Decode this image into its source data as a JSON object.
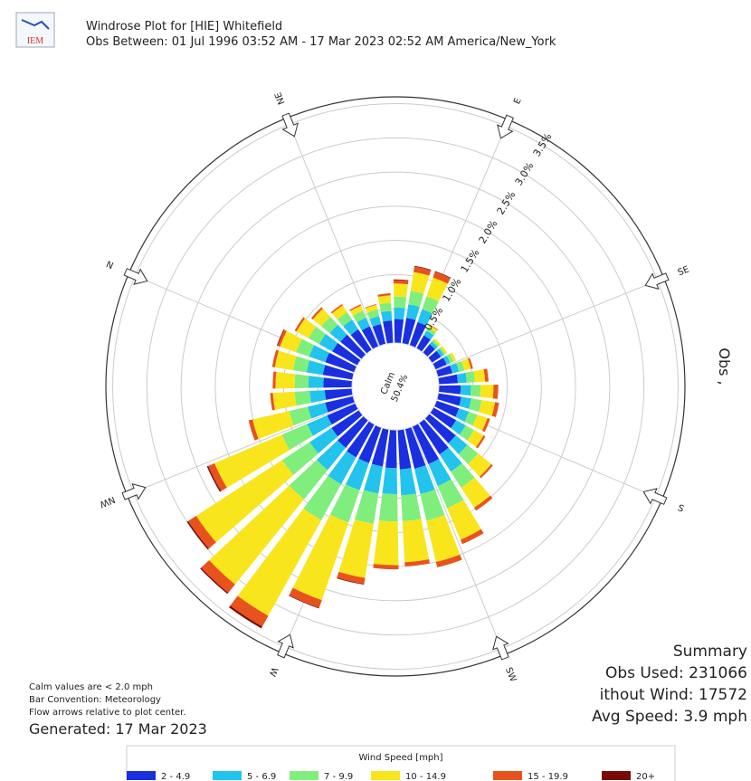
{
  "header": {
    "title": "Windrose Plot for [HIE] Whitefield",
    "subtitle": "Obs Between: 01 Jul 1996 03:52 AM - 17 Mar 2023 02:52 AM America/New_York",
    "logo": "IEM"
  },
  "chart_data": {
    "type": "windrose",
    "direction_labels": [
      "N",
      "NE",
      "E",
      "SE",
      "S",
      "SW",
      "W",
      "NW"
    ],
    "side_label": "Obs ,",
    "calm_label": "Calm",
    "calm_value": 50.4,
    "calm_value_label": "50.4%",
    "ylim": [
      0,
      3.6
    ],
    "yticks": [
      {
        "value": 0.5,
        "label": "0.5%"
      },
      {
        "value": 1.0,
        "label": "1.0%"
      },
      {
        "value": 1.5,
        "label": "1.5%"
      },
      {
        "value": 2.0,
        "label": "2.0%"
      },
      {
        "value": 2.5,
        "label": "2.5%"
      },
      {
        "value": 3.0,
        "label": "3.0%"
      },
      {
        "value": 3.5,
        "label": "3.5%"
      }
    ],
    "grid": true,
    "legend_title": "Wind Speed [mph]",
    "series": [
      {
        "name": "2 - 4.9",
        "color": "#1a2fe0",
        "values": [
          0.45,
          0.42,
          0.4,
          0.36,
          0.32,
          0.3,
          0.33,
          0.35,
          0.38,
          0.36,
          0.22,
          0.16,
          0.16,
          0.18,
          0.22,
          0.28,
          0.32,
          0.34,
          0.35,
          0.38,
          0.5,
          0.55,
          0.6,
          0.6,
          0.58,
          0.56,
          0.55,
          0.55,
          0.55,
          0.52,
          0.48,
          0.45,
          0.42,
          0.4,
          0.42,
          0.44
        ]
      },
      {
        "name": "5 - 6.9",
        "color": "#22c3ec",
        "values": [
          0.25,
          0.22,
          0.2,
          0.17,
          0.14,
          0.12,
          0.14,
          0.17,
          0.2,
          0.2,
          0.08,
          0.05,
          0.05,
          0.06,
          0.1,
          0.13,
          0.15,
          0.15,
          0.15,
          0.16,
          0.22,
          0.3,
          0.35,
          0.38,
          0.38,
          0.38,
          0.4,
          0.42,
          0.45,
          0.42,
          0.38,
          0.32,
          0.26,
          0.22,
          0.22,
          0.24
        ]
      },
      {
        "name": "7 - 9.9",
        "color": "#80ee7c",
        "values": [
          0.2,
          0.18,
          0.16,
          0.13,
          0.11,
          0.1,
          0.12,
          0.16,
          0.2,
          0.2,
          0.05,
          0.03,
          0.03,
          0.05,
          0.08,
          0.12,
          0.14,
          0.15,
          0.13,
          0.14,
          0.2,
          0.28,
          0.35,
          0.4,
          0.38,
          0.4,
          0.45,
          0.5,
          0.6,
          0.55,
          0.48,
          0.4,
          0.28,
          0.22,
          0.2,
          0.2
        ]
      },
      {
        "name": "10 - 14.9",
        "color": "#f9e51b",
        "values": [
          0.25,
          0.2,
          0.16,
          0.12,
          0.08,
          0.07,
          0.11,
          0.19,
          0.28,
          0.29,
          0.04,
          0.03,
          0.03,
          0.04,
          0.1,
          0.15,
          0.19,
          0.2,
          0.16,
          0.16,
          0.25,
          0.35,
          0.5,
          0.62,
          0.6,
          0.64,
          0.8,
          1.2,
          1.6,
          1.6,
          1.5,
          1.07,
          0.55,
          0.32,
          0.28,
          0.27
        ]
      },
      {
        "name": "15 - 19.9",
        "color": "#e8521c",
        "values": [
          0.04,
          0.03,
          0.03,
          0.02,
          0.02,
          0.01,
          0.03,
          0.05,
          0.08,
          0.09,
          0.01,
          0,
          0,
          0,
          0.03,
          0.05,
          0.07,
          0.06,
          0.04,
          0.03,
          0.03,
          0.05,
          0.07,
          0.08,
          0.06,
          0.06,
          0.09,
          0.12,
          0.18,
          0.16,
          0.14,
          0.1,
          0.06,
          0.04,
          0.04,
          0.04
        ]
      },
      {
        "name": "20+",
        "color": "#7a0a0a",
        "values": [
          0.01,
          0,
          0,
          0,
          0,
          0,
          0,
          0.01,
          0.01,
          0.01,
          0,
          0,
          0,
          0,
          0,
          0,
          0,
          0,
          0,
          0,
          0,
          0,
          0,
          0,
          0,
          0,
          0.01,
          0.01,
          0.03,
          0.02,
          0.02,
          0.02,
          0,
          0,
          0,
          0
        ]
      }
    ]
  },
  "notes": [
    "Calm values are < 2.0 mph",
    "Bar Convention: Meteorology",
    "Flow arrows relative to plot center."
  ],
  "generated": "Generated: 17 Mar 2023",
  "summary": {
    "title": "Summary",
    "lines": [
      "Obs Used: 231066",
      "ithout Wind: 17572",
      "Avg Speed: 3.9 mph"
    ]
  }
}
